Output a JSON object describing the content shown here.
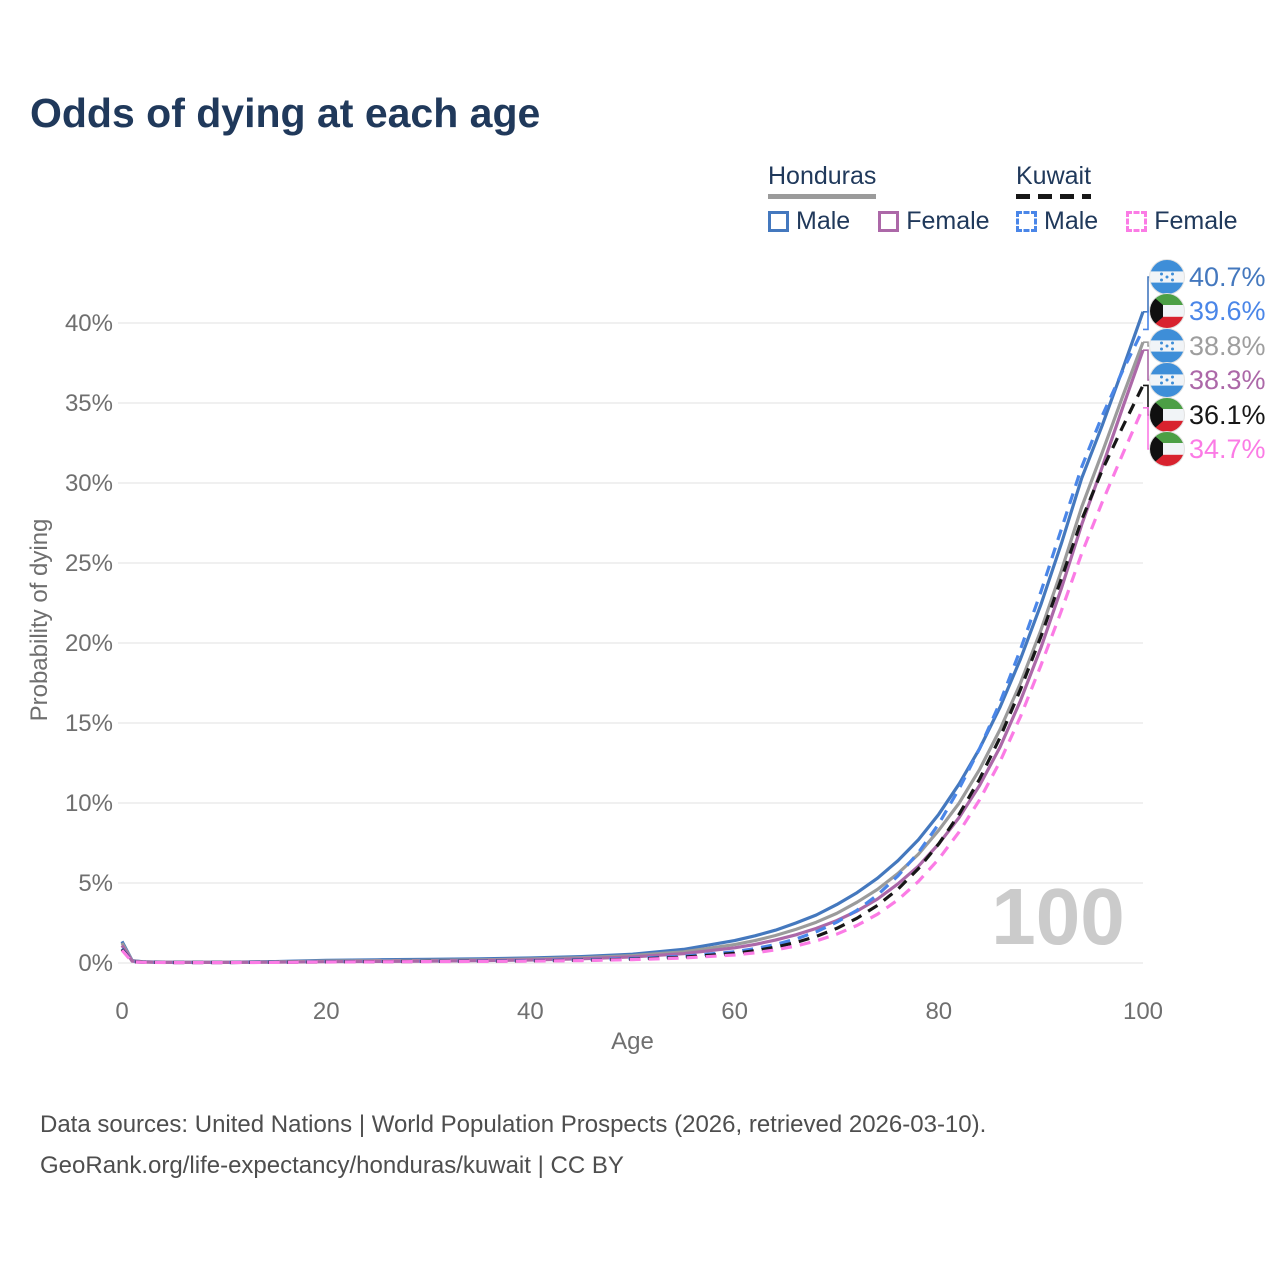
{
  "title": "Odds of dying at each age",
  "legend": {
    "groups": [
      {
        "name": "Honduras",
        "line_style": "solid",
        "underline_color": "#9B9B9B",
        "items": [
          {
            "label": "Male",
            "color": "#4478BE"
          },
          {
            "label": "Female",
            "color": "#AC68A8"
          }
        ]
      },
      {
        "name": "Kuwait",
        "line_style": "dashed",
        "underline_color": "#171717",
        "items": [
          {
            "label": "Male",
            "color": "#4A86E8"
          },
          {
            "label": "Female",
            "color": "#FB7BE5"
          }
        ]
      }
    ]
  },
  "chart_data": {
    "type": "line",
    "title": "Odds of dying at each age",
    "xlabel": "Age",
    "ylabel": "Probability of dying",
    "xlim": [
      0,
      100
    ],
    "ylim_pct": [
      0,
      43
    ],
    "grid": "horizontal",
    "x_tick_values": [
      0,
      20,
      40,
      60,
      80,
      100
    ],
    "x_tick_labels": [
      "0",
      "20",
      "40",
      "60",
      "80",
      "100"
    ],
    "y_tick_values": [
      0,
      5,
      10,
      15,
      20,
      25,
      30,
      35,
      40
    ],
    "y_tick_labels": [
      "0%",
      "5%",
      "10%",
      "15%",
      "20%",
      "25%",
      "30%",
      "35%",
      "40%"
    ],
    "watermark": "100",
    "x": [
      0,
      1,
      2,
      3,
      5,
      10,
      15,
      20,
      25,
      30,
      35,
      40,
      45,
      50,
      55,
      60,
      62,
      64,
      66,
      68,
      70,
      72,
      74,
      76,
      78,
      80,
      82,
      84,
      86,
      88,
      90,
      92,
      94,
      96,
      98,
      100
    ],
    "series": [
      {
        "name": "Honduras Male",
        "country": "honduras",
        "sex": "male",
        "style": "solid",
        "color": "#4478BE",
        "values": [
          1.35,
          0.15,
          0.08,
          0.06,
          0.05,
          0.05,
          0.09,
          0.16,
          0.2,
          0.23,
          0.26,
          0.31,
          0.4,
          0.55,
          0.85,
          1.4,
          1.7,
          2.05,
          2.5,
          3.0,
          3.65,
          4.4,
          5.3,
          6.4,
          7.7,
          9.3,
          11.2,
          13.4,
          16.0,
          19.0,
          22.4,
          26.2,
          30.3,
          33.6,
          37.1,
          40.7
        ]
      },
      {
        "name": "Honduras Both sexes",
        "country": "honduras",
        "sex": "both",
        "style": "solid",
        "color": "#9B9B9B",
        "values": [
          1.25,
          0.13,
          0.07,
          0.055,
          0.045,
          0.045,
          0.07,
          0.12,
          0.15,
          0.17,
          0.2,
          0.25,
          0.33,
          0.46,
          0.7,
          1.15,
          1.4,
          1.72,
          2.1,
          2.55,
          3.1,
          3.8,
          4.6,
          5.6,
          6.8,
          8.3,
          10.0,
          12.1,
          14.6,
          17.5,
          20.8,
          24.5,
          28.5,
          31.9,
          35.4,
          38.8
        ]
      },
      {
        "name": "Honduras Female",
        "country": "honduras",
        "sex": "female",
        "style": "solid",
        "color": "#AC68A8",
        "values": [
          1.1,
          0.11,
          0.06,
          0.05,
          0.04,
          0.04,
          0.05,
          0.08,
          0.1,
          0.12,
          0.15,
          0.19,
          0.26,
          0.38,
          0.58,
          0.95,
          1.16,
          1.43,
          1.76,
          2.16,
          2.65,
          3.25,
          4.0,
          4.95,
          6.05,
          7.45,
          9.1,
          11.1,
          13.5,
          16.4,
          19.7,
          23.4,
          27.4,
          31.0,
          34.7,
          38.3
        ]
      },
      {
        "name": "Kuwait Male",
        "country": "kuwait",
        "sex": "male",
        "style": "dashed",
        "color": "#4A86E8",
        "values": [
          0.9,
          0.08,
          0.05,
          0.04,
          0.03,
          0.03,
          0.05,
          0.08,
          0.1,
          0.11,
          0.13,
          0.15,
          0.2,
          0.28,
          0.42,
          0.7,
          0.9,
          1.15,
          1.5,
          1.95,
          2.55,
          3.3,
          4.25,
          5.45,
          6.9,
          8.7,
          10.9,
          13.4,
          16.3,
          19.6,
          23.2,
          27.1,
          31.0,
          34.2,
          37.0,
          39.6
        ]
      },
      {
        "name": "Kuwait Both sexes",
        "country": "kuwait",
        "sex": "both",
        "style": "dashed",
        "color": "#171717",
        "values": [
          0.85,
          0.075,
          0.05,
          0.04,
          0.03,
          0.03,
          0.045,
          0.07,
          0.085,
          0.1,
          0.11,
          0.13,
          0.17,
          0.24,
          0.36,
          0.6,
          0.77,
          0.99,
          1.28,
          1.66,
          2.16,
          2.8,
          3.6,
          4.62,
          5.9,
          7.45,
          9.3,
          11.5,
          14.1,
          17.1,
          20.4,
          24.0,
          27.7,
          30.8,
          33.5,
          36.1
        ]
      },
      {
        "name": "Kuwait Female",
        "country": "kuwait",
        "sex": "female",
        "style": "dashed",
        "color": "#FB7BE5",
        "values": [
          0.8,
          0.07,
          0.045,
          0.035,
          0.028,
          0.028,
          0.04,
          0.06,
          0.075,
          0.09,
          0.1,
          0.12,
          0.15,
          0.21,
          0.31,
          0.5,
          0.64,
          0.82,
          1.06,
          1.38,
          1.8,
          2.35,
          3.05,
          3.95,
          5.1,
          6.5,
          8.2,
          10.2,
          12.6,
          15.4,
          18.6,
          22.0,
          25.6,
          28.8,
          31.8,
          34.7
        ]
      }
    ],
    "end_labels": [
      {
        "value": "40.7%",
        "flag": "honduras",
        "series": "Honduras Male",
        "color": "#4478BE",
        "final_pct": 40.7
      },
      {
        "value": "39.6%",
        "flag": "kuwait",
        "series": "Kuwait Male",
        "color": "#4A86E8",
        "final_pct": 39.6
      },
      {
        "value": "38.8%",
        "flag": "honduras",
        "series": "Honduras Both sexes",
        "color": "#9E9E9E",
        "final_pct": 38.8
      },
      {
        "value": "38.3%",
        "flag": "honduras",
        "series": "Honduras Female",
        "color": "#AC68A8",
        "final_pct": 38.3
      },
      {
        "value": "36.1%",
        "flag": "kuwait",
        "series": "Kuwait Both sexes",
        "color": "#171717",
        "final_pct": 36.1
      },
      {
        "value": "34.7%",
        "flag": "kuwait",
        "series": "Kuwait Female",
        "color": "#FB7BE5",
        "final_pct": 34.7
      }
    ]
  },
  "footer": {
    "line1": "Data sources: United Nations | World Population Prospects (2026, retrieved 2026-03-10).",
    "line2": "GeoRank.org/life-expectancy/honduras/kuwait | CC BY"
  }
}
